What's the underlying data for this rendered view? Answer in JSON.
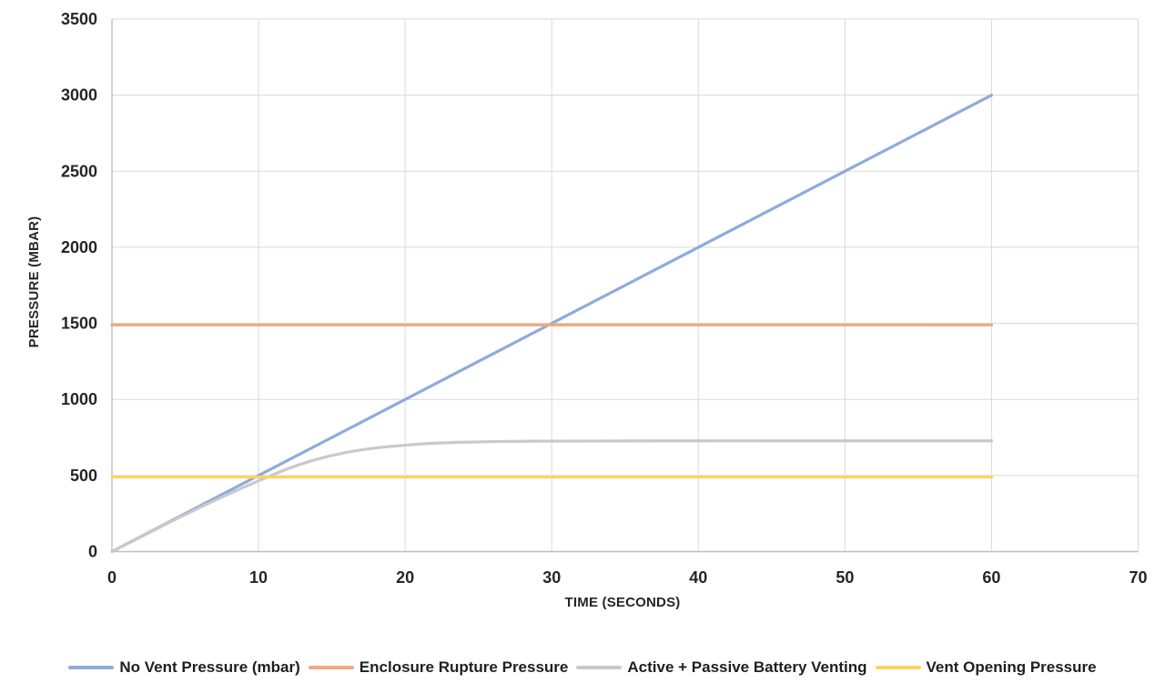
{
  "chart_data": {
    "type": "line",
    "title": "",
    "xlabel": "TIME (SECONDS)",
    "ylabel": "PRESSURE (MBAR)",
    "xlim": [
      0,
      70
    ],
    "ylim": [
      0,
      3500
    ],
    "x_ticks": [
      0,
      10,
      20,
      30,
      40,
      50,
      60,
      70
    ],
    "y_ticks": [
      0,
      500,
      1000,
      1500,
      2000,
      2500,
      3000,
      3500
    ],
    "grid": true,
    "gridline_color": "#D9D9D9",
    "axis_line_color": "#BFBFBF",
    "tick_label_color": "#262626",
    "legend_position": "bottom",
    "series": [
      {
        "name": "No Vent Pressure (mbar)",
        "color": "#8FAADC",
        "x": [
          0,
          60
        ],
        "values": [
          0,
          3000
        ]
      },
      {
        "name": "Enclosure Rupture Pressure",
        "color": "#F1A87E",
        "x": [
          0,
          60
        ],
        "values": [
          1490,
          1490
        ]
      },
      {
        "name": "Active + Passive Battery Venting",
        "color": "#C9C9C9",
        "x": [
          0,
          2,
          4,
          6,
          8,
          10,
          12,
          14,
          16,
          18,
          20,
          22,
          24,
          26,
          28,
          30,
          35,
          40,
          45,
          50,
          55,
          60
        ],
        "values": [
          0,
          98,
          196,
          290,
          380,
          465,
          545,
          607,
          652,
          681,
          699,
          712,
          719,
          723,
          725,
          726,
          727,
          728,
          728,
          728,
          728,
          728
        ]
      },
      {
        "name": "Vent Opening Pressure",
        "color": "#FFD45E",
        "x": [
          0,
          60
        ],
        "values": [
          490,
          490
        ]
      }
    ]
  }
}
